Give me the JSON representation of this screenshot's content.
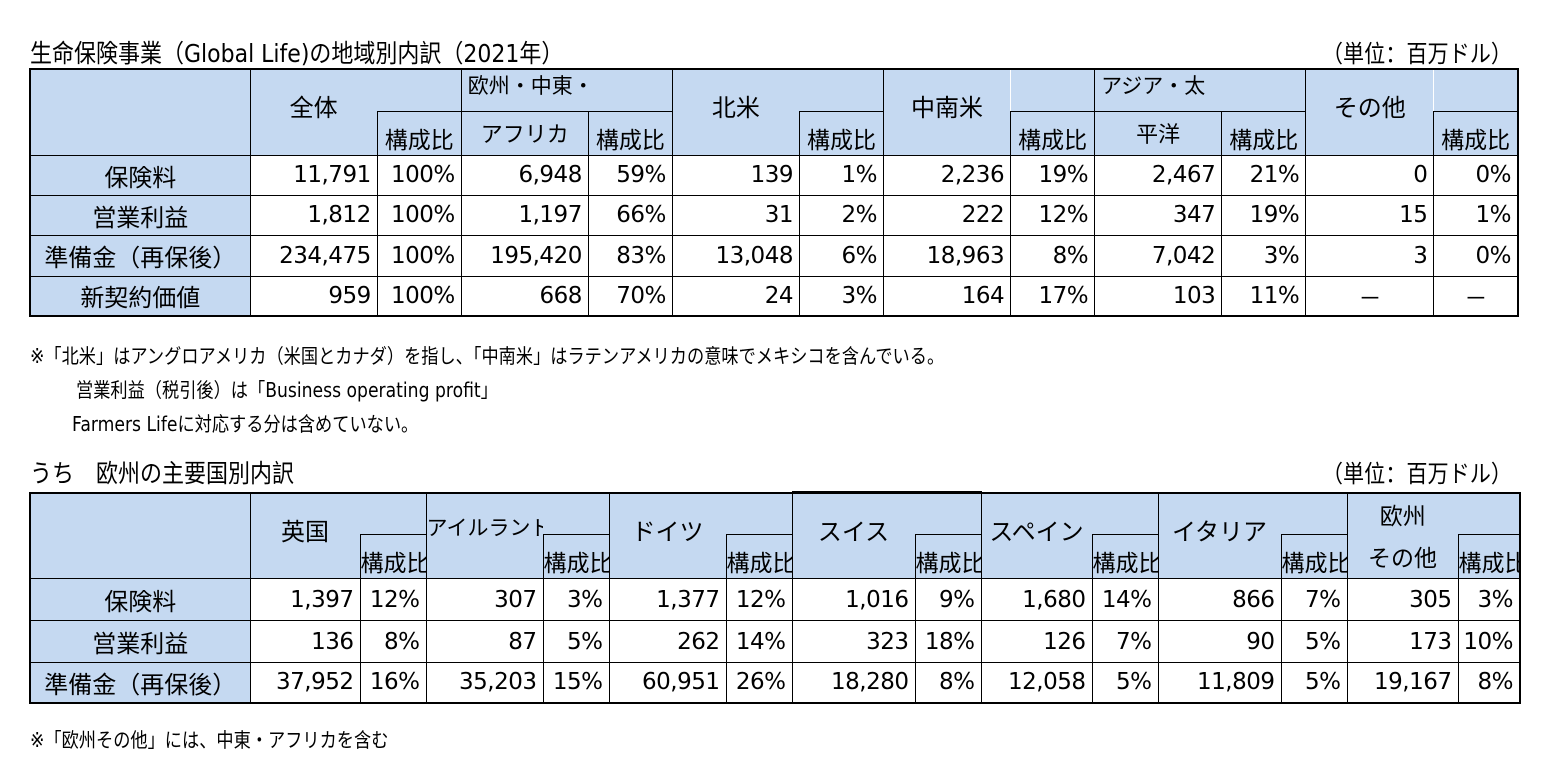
{
  "table1": {
    "title": "生命保険事業（Global Life)の地域別内訳（2021年）",
    "unit": "（単位：百万ドル）",
    "comp_label": "構成比",
    "regions": [
      {
        "name": "全体"
      },
      {
        "name_l1": "欧州・中東・",
        "name_l2": "アフリカ"
      },
      {
        "name": "北米"
      },
      {
        "name": "中南米"
      },
      {
        "name_l1": "アジア・太",
        "name_l2": "平洋"
      },
      {
        "name": "その他"
      }
    ],
    "rows": [
      {
        "label": "保険料",
        "cells": [
          "11,791",
          "100%",
          "6,948",
          "59%",
          "139",
          "1%",
          "2,236",
          "19%",
          "2,467",
          "21%",
          "0",
          "0%"
        ]
      },
      {
        "label": "営業利益",
        "cells": [
          "1,812",
          "100%",
          "1,197",
          "66%",
          "31",
          "2%",
          "222",
          "12%",
          "347",
          "19%",
          "15",
          "1%"
        ]
      },
      {
        "label": "準備金（再保後）",
        "cells": [
          "234,475",
          "100%",
          "195,420",
          "83%",
          "13,048",
          "6%",
          "18,963",
          "8%",
          "7,042",
          "3%",
          "3",
          "0%"
        ]
      },
      {
        "label": "新契約価値",
        "cells": [
          "959",
          "100%",
          "668",
          "70%",
          "24",
          "3%",
          "164",
          "17%",
          "103",
          "11%",
          "－",
          "－"
        ]
      }
    ]
  },
  "notes": [
    "※「北米」はアングロアメリカ（米国とカナダ）を指し、「中南米」はラテンアメリカの意味でメキシコを含んでいる。",
    "営業利益（税引後）は「Business operating profit」",
    "Farmers Lifeに対応する分は含めていない。"
  ],
  "table2": {
    "title": "うち　欧州の主要国別内訳",
    "unit": "（単位：百万ドル）",
    "comp_label": "構成比",
    "countries": [
      {
        "name": "英国"
      },
      {
        "name": "アイルランド"
      },
      {
        "name": "ドイツ"
      },
      {
        "name": "スイス"
      },
      {
        "name": "スペイン"
      },
      {
        "name": "イタリア"
      },
      {
        "name_l1": "欧州",
        "name_l2": "その他"
      }
    ],
    "rows": [
      {
        "label": "保険料",
        "cells": [
          "1,397",
          "12%",
          "307",
          "3%",
          "1,377",
          "12%",
          "1,016",
          "9%",
          "1,680",
          "14%",
          "866",
          "7%",
          "305",
          "3%"
        ]
      },
      {
        "label": "営業利益",
        "cells": [
          "136",
          "8%",
          "87",
          "5%",
          "262",
          "14%",
          "323",
          "18%",
          "126",
          "7%",
          "90",
          "5%",
          "173",
          "10%"
        ]
      },
      {
        "label": "準備金（再保後）",
        "cells": [
          "37,952",
          "16%",
          "35,203",
          "15%",
          "60,951",
          "26%",
          "18,280",
          "8%",
          "12,058",
          "5%",
          "11,809",
          "5%",
          "19,167",
          "8%"
        ]
      }
    ]
  },
  "footnote": "※「欧州その他」には、中東・アフリカを含む"
}
